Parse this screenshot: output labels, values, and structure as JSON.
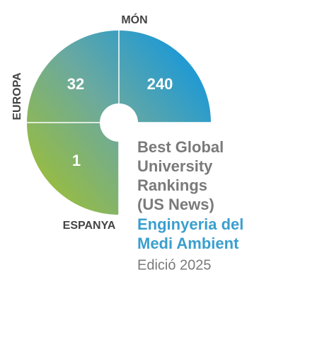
{
  "quadrants": [
    {
      "label": "MÓN",
      "rank": 240
    },
    {
      "label": "EUROPA",
      "rank": 32
    },
    {
      "label": "ESPANYA",
      "rank": 1
    }
  ],
  "title_lines": [
    "Best Global",
    "University",
    "Rankings",
    "(US News)"
  ],
  "subtitle_lines": [
    "Enginyeria del",
    "Medi Ambient"
  ],
  "edition": "Edició 2025"
}
